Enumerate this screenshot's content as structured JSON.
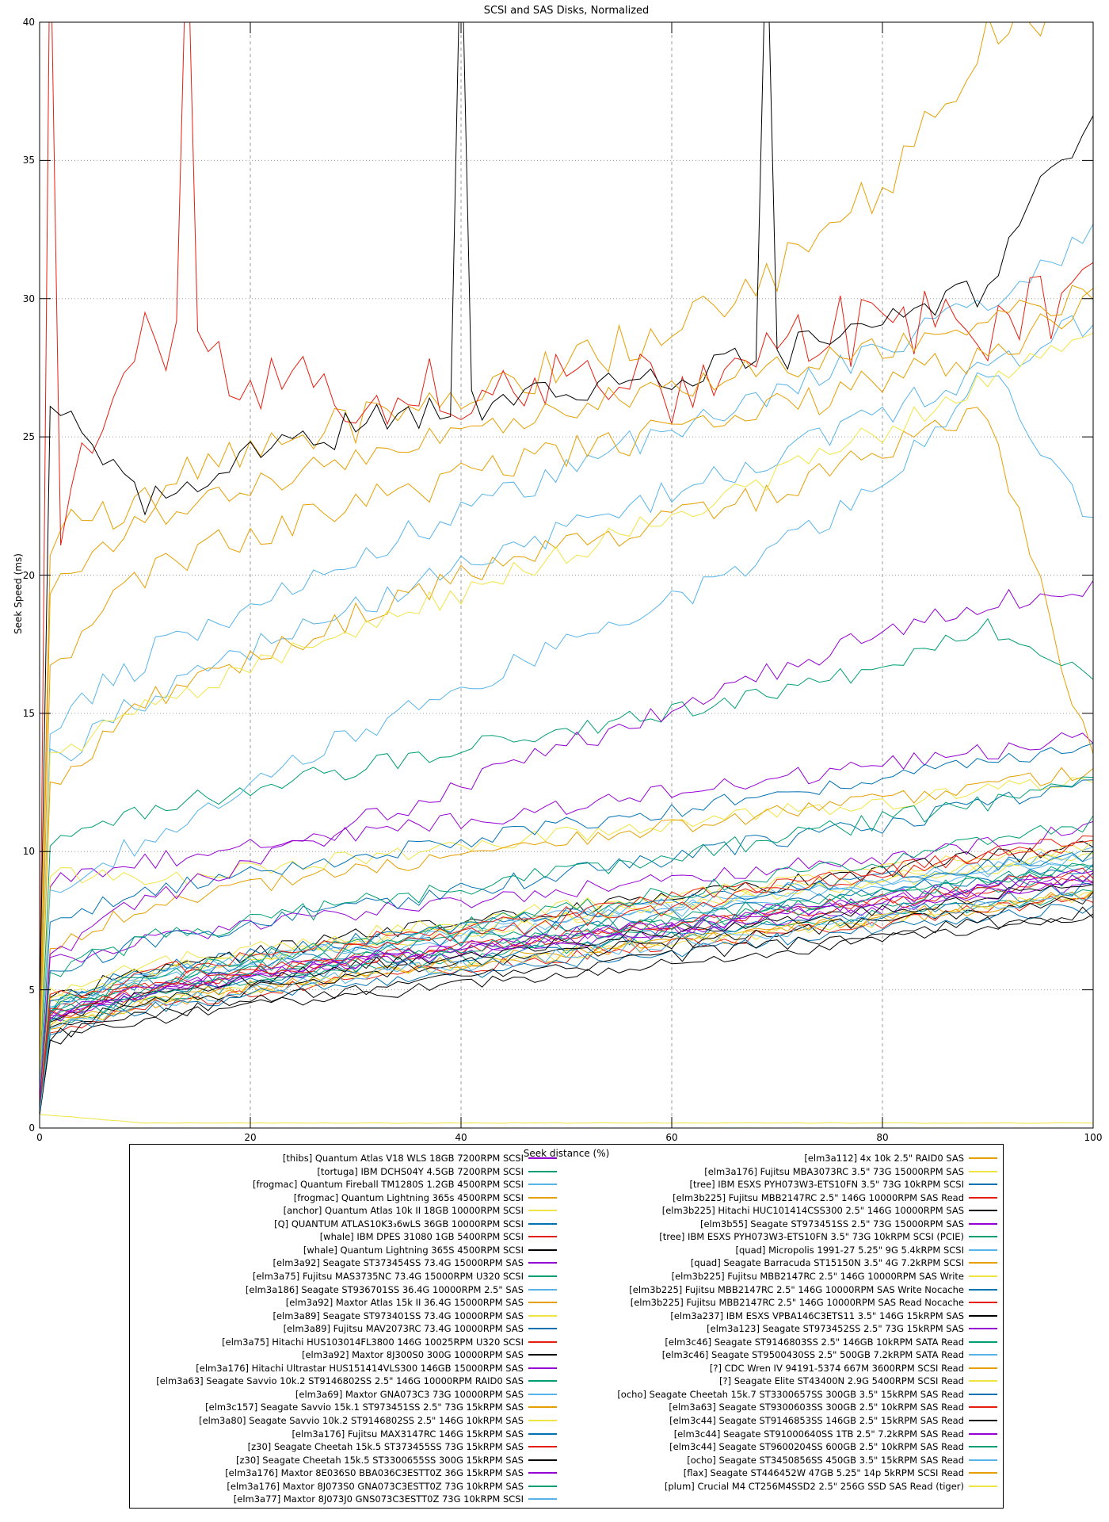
{
  "chart_data": {
    "type": "line",
    "title": "SCSI and SAS Disks, Normalized",
    "xlabel": "Seek distance (%)",
    "ylabel": "Seek Speed (ms)",
    "xlim": [
      0,
      100
    ],
    "ylim": [
      0,
      40
    ],
    "xticks": [
      0,
      20,
      40,
      60,
      80,
      100
    ],
    "yticks": [
      0,
      5,
      10,
      15,
      20,
      25,
      30,
      35,
      40
    ],
    "grid": "gray dashed vertical at 20/40/60/80, gray dotted horizontal at 5..35",
    "legend_position": "below plot, two columns, boxed",
    "palette": {
      "purple": "#9400d3",
      "green": "#009e73",
      "skyblue": "#56b4e9",
      "orange": "#e69f00",
      "yellow": "#f0e442",
      "blue": "#0072b2",
      "red": "#e51e10",
      "black": "#000000"
    },
    "x_anchor_step": 10,
    "series": [
      {
        "label": "[thibs] Quantum Atlas V18 WLS 18GB 7200RPM SCSI",
        "color": "purple",
        "column": "left",
        "y": [
          8.8,
          9.6,
          10.1,
          10.6,
          11.1,
          11.6,
          12.1,
          12.6,
          13.1,
          13.6,
          14.1
        ],
        "n": 0.35
      },
      {
        "label": "[tortuga] IBM DCHS04Y 4.5GB 7200RPM SCSI",
        "color": "green",
        "column": "left",
        "y": [
          10,
          11.5,
          12.3,
          13,
          13.7,
          14.4,
          15.1,
          15.8,
          16.6,
          18.2,
          16.1
        ],
        "n": 0.35
      },
      {
        "label": "[frogmac] Quantum Fireball TM1280S 1.2GB 4500RPM SCSI",
        "color": "skyblue",
        "column": "left",
        "y": [
          14.5,
          17,
          19,
          20.8,
          22.3,
          23.8,
          25.2,
          26.6,
          28,
          30,
          32.5
        ],
        "n": 0.6
      },
      {
        "label": "[frogmac] Quantum Lightning 365s 4500RPM SCSI",
        "color": "orange",
        "column": "left",
        "y": [
          21,
          23,
          24.5,
          25.5,
          26.5,
          27.5,
          29,
          31,
          34,
          39.5,
          40.8
        ],
        "n": 0.8
      },
      {
        "label": "[anchor] Quantum Atlas 10k II 18GB 10000RPM SCSI",
        "color": "yellow",
        "column": "left",
        "y": [
          9.3,
          8.9,
          9.4,
          9.8,
          10.2,
          10.6,
          11,
          11.4,
          11.8,
          12.2,
          12.7
        ],
        "n": 0.3
      },
      {
        "label": "[Q] QUANTUM ATLAS10K3₃6wLS 36GB 10000RPM SCSI",
        "color": "blue",
        "column": "left",
        "y": [
          7.5,
          8.5,
          9.2,
          9.8,
          10.4,
          11,
          11.5,
          12.1,
          12.7,
          13.3,
          13.9
        ],
        "n": 0.3
      },
      {
        "label": "[whale] IBM DPES 31080 1GB 5400RPM SCSI",
        "color": "red",
        "column": "left",
        "y": [
          20,
          28.5,
          27.5,
          26.5,
          27,
          27.5,
          26.8,
          28,
          29.3,
          28.8,
          30.3
        ],
        "n": 1.4,
        "spikes": [
          [
            1,
            44
          ],
          [
            14,
            44
          ]
        ]
      },
      {
        "label": "[whale] Quantum Lightning 365S 4500RPM SCSI",
        "color": "black",
        "column": "left",
        "y": [
          27,
          22.5,
          24.6,
          25.4,
          26,
          26.4,
          27.4,
          28,
          28.8,
          30.5,
          37
        ],
        "n": 0.7,
        "spikes": [
          [
            40,
            44
          ],
          [
            69,
            44
          ]
        ]
      },
      {
        "label": "[elm3a92] Seagate ST373454SS 73.4G 15000RPM SAS",
        "color": "purple",
        "column": "left",
        "y": [
          5.8,
          6.8,
          7.3,
          7.8,
          8.2,
          8.6,
          9,
          9.4,
          9.8,
          10.3,
          10.8
        ],
        "n": 0.3
      },
      {
        "label": "[elm3a75] Fujitsu MAS3735NC 73.4G 15000RPM U320 SCSI",
        "color": "green",
        "column": "left",
        "y": [
          3.7,
          4.7,
          5.2,
          5.7,
          6.1,
          6.5,
          6.9,
          7.3,
          7.7,
          8.1,
          8.5
        ],
        "n": 0.25
      },
      {
        "label": "[elm3a186] Seagate ST936701SS 36.4G 10000RPM 2.5\" SAS",
        "color": "skyblue",
        "column": "left",
        "y": [
          4.2,
          5.3,
          5.9,
          6.4,
          6.9,
          7.4,
          7.8,
          8.3,
          8.7,
          9.2,
          9.6
        ],
        "n": 0.25
      },
      {
        "label": "[elm3a92] Maxtor Atlas 15k II 36.4G 15000RPM SAS",
        "color": "orange",
        "column": "left",
        "y": [
          3.6,
          4.5,
          5,
          5.5,
          5.9,
          6.3,
          6.7,
          7.1,
          7.5,
          8,
          8.4
        ],
        "n": 0.25
      },
      {
        "label": "[elm3a89] Seagate ST973401SS 73.4G 10000RPM SAS",
        "color": "yellow",
        "column": "left",
        "y": [
          4.4,
          5.5,
          6.1,
          6.6,
          7.1,
          7.6,
          8,
          8.5,
          8.9,
          9.4,
          9.8
        ],
        "n": 0.25
      },
      {
        "label": "[elm3a89] Fujitsu MAV2073RC 73.4G 10000RPM SAS",
        "color": "blue",
        "column": "left",
        "y": [
          4.3,
          5.3,
          5.9,
          6.4,
          6.8,
          7.3,
          7.7,
          8.1,
          8.6,
          9,
          9.4
        ],
        "n": 0.25
      },
      {
        "label": "[elm3a75] Hitachi HUS103014FL3800 146G 10025RPM U320 SCSI",
        "color": "red",
        "column": "left",
        "y": [
          4.1,
          5.1,
          5.6,
          6.1,
          6.5,
          6.9,
          7.3,
          7.7,
          8.1,
          8.6,
          9
        ],
        "n": 0.25
      },
      {
        "label": "[elm3a92] Maxtor 8J300S0 300G 10000RPM SAS",
        "color": "black",
        "column": "left",
        "y": [
          4.6,
          5.7,
          6.3,
          6.9,
          7.4,
          7.9,
          8.3,
          8.8,
          9.3,
          9.8,
          10.2
        ],
        "n": 0.3
      },
      {
        "label": "[elm3a176] Hitachi Ultrastar HUS151414VLS300 146GB 15000RPM SAS",
        "color": "purple",
        "column": "left",
        "y": [
          3.9,
          4.9,
          5.4,
          5.9,
          6.3,
          6.7,
          7.1,
          7.5,
          7.9,
          8.4,
          8.8
        ],
        "n": 0.25
      },
      {
        "label": "[elm3a63] Seagate Savvio 10k.2 ST9146802SS 2.5\" 146G 10000RPM RAID0 SAS",
        "color": "green",
        "column": "left",
        "y": [
          4,
          5,
          5.6,
          6.1,
          6.5,
          7,
          7.4,
          7.8,
          8.2,
          8.7,
          9.1
        ],
        "n": 0.25
      },
      {
        "label": "[elm3a69] Maxtor GNA073C3 73G 10000RPM SAS",
        "color": "skyblue",
        "column": "left",
        "y": [
          4.5,
          5.6,
          6.2,
          6.7,
          7.2,
          7.7,
          8.1,
          8.6,
          9,
          9.5,
          10
        ],
        "n": 0.25
      },
      {
        "label": "[elm3c157] Seagate Savvio 15k.1 ST973451SS 2.5\" 73G 15kRPM SAS",
        "color": "orange",
        "column": "left",
        "y": [
          3.7,
          4.6,
          5.1,
          5.6,
          6,
          6.4,
          6.8,
          7.2,
          7.6,
          8.1,
          8.5
        ],
        "n": 0.25
      },
      {
        "label": "[elm3a80] Seagate Savvio 10k.2 ST9146802SS 2.5\" 146G 10kRPM SAS",
        "color": "yellow",
        "column": "left",
        "y": [
          4.5,
          5.6,
          6.2,
          6.7,
          7.2,
          7.7,
          8.1,
          8.6,
          9,
          9.5,
          9.9
        ],
        "n": 0.25
      },
      {
        "label": "[elm3a176] Fujitsu MAX3147RC 146G 15kRPM SAS",
        "color": "blue",
        "column": "left",
        "y": [
          3.8,
          4.8,
          5.3,
          5.8,
          6.2,
          6.6,
          7,
          7.4,
          7.8,
          8.3,
          8.7
        ],
        "n": 0.25
      },
      {
        "label": "[z30] Seagate Cheetah 15k.5 ST373455SS 73G 15kRPM SAS",
        "color": "red",
        "column": "left",
        "y": [
          3.5,
          4.4,
          4.9,
          5.4,
          5.8,
          6.2,
          6.6,
          7,
          7.4,
          7.9,
          8.3
        ],
        "n": 0.25
      },
      {
        "label": "[z30] Seagate Cheetah 15k.5 ST3300655SS 300G 15kRPM SAS",
        "color": "black",
        "column": "left",
        "y": [
          3,
          3.9,
          4.4,
          4.8,
          5.2,
          5.6,
          6,
          6.4,
          6.8,
          7.2,
          7.6
        ],
        "n": 0.25
      },
      {
        "label": "[elm3a176] Maxtor 8E036S0 BBA036C3ESTT0Z 36G 15kRPM SAS",
        "color": "purple",
        "column": "left",
        "y": [
          3.9,
          4.9,
          5.5,
          6,
          6.4,
          6.8,
          7.2,
          7.7,
          8.1,
          8.6,
          9
        ],
        "n": 0.25
      },
      {
        "label": "[elm3a176] Maxtor 8J073S0 GNA073C3ESTT0Z 73G 10kRPM SAS",
        "color": "green",
        "column": "left",
        "y": [
          4.2,
          5.2,
          5.8,
          6.3,
          6.8,
          7.2,
          7.6,
          8.1,
          8.5,
          9,
          9.4
        ],
        "n": 0.25
      },
      {
        "label": "[elm3a77] Maxtor 8J073J0 GNS073C3ESTT0Z 73G 10kRPM SCSI",
        "color": "skyblue",
        "column": "left",
        "y": [
          4.4,
          5.5,
          6.1,
          6.6,
          7.1,
          7.6,
          8,
          8.5,
          8.9,
          9.4,
          9.8
        ],
        "n": 0.25
      },
      {
        "label": "[elm3a112] 4x 10k 2.5\" RAID0 SAS",
        "color": "orange",
        "column": "right",
        "y": [
          6.5,
          8,
          8.7,
          9.3,
          9.9,
          10.4,
          10.9,
          11.4,
          11.9,
          12.4,
          12.9
        ],
        "n": 0.3
      },
      {
        "label": "[elm3a176] Fujitsu MBA3073RC 3.5\" 73G 15000RPM SAS",
        "color": "yellow",
        "column": "right",
        "y": [
          3.6,
          4.5,
          5,
          5.5,
          5.9,
          6.3,
          6.7,
          7.1,
          7.5,
          8,
          8.4
        ],
        "n": 0.25
      },
      {
        "label": "[tree] IBM ESXS PYH073W3-ETS10FN 3.5\" 73G 10kRPM SCSI",
        "color": "blue",
        "column": "right",
        "y": [
          5.5,
          6.7,
          7.4,
          8,
          8.6,
          9.2,
          9.8,
          10.4,
          11,
          11.7,
          12.4
        ],
        "n": 0.35
      },
      {
        "label": "[elm3b225] Fujitsu MBB2147RC 2.5\" 146G 10000RPM SAS Read",
        "color": "red",
        "column": "right",
        "y": [
          4,
          5,
          5.6,
          6.1,
          6.5,
          7,
          7.4,
          7.8,
          8.3,
          8.8,
          9.2
        ],
        "n": 0.25
      },
      {
        "label": "[elm3b225] Hitachi HUC101414CSS300 2.5\" 146G 10000RPM SAS",
        "color": "black",
        "column": "right",
        "y": [
          3.9,
          4.8,
          5.4,
          5.9,
          6.3,
          6.7,
          7.1,
          7.5,
          7.9,
          8.4,
          8.8
        ],
        "n": 0.25
      },
      {
        "label": "[elm3b55] Seagate ST973451SS 2.5\" 73G 15000RPM SAS",
        "color": "purple",
        "column": "right",
        "y": [
          4,
          5,
          5.5,
          6,
          6.5,
          6.9,
          7.3,
          7.7,
          8.2,
          8.7,
          9.1
        ],
        "n": 0.25
      },
      {
        "label": "[tree] IBM ESXS PYH073W3-ETS10FN 3.5\" 73G 10kRPM SCSI (PCIE)",
        "color": "green",
        "column": "right",
        "y": [
          5.5,
          6.8,
          7.5,
          8.1,
          8.7,
          9.3,
          9.9,
          10.5,
          11.1,
          11.8,
          12.6
        ],
        "n": 0.35
      },
      {
        "label": "[quad] Micropolis 1991-27 5.25\" 9G 5.4kRPM SCSI",
        "color": "skyblue",
        "column": "right",
        "y": [
          13,
          15.5,
          17.3,
          18.8,
          20.3,
          21.6,
          23,
          24.4,
          25.8,
          27.5,
          29.3
        ],
        "n": 0.5
      },
      {
        "label": "[quad] Seagate Barracuda ST15150N 3.5\" 4G 7.2kRPM SCSI",
        "color": "orange",
        "column": "right",
        "y": [
          12,
          15.5,
          17,
          18.5,
          20,
          21,
          22,
          23,
          24.5,
          26,
          13.2
        ],
        "n": 0.5
      },
      {
        "label": "[elm3b225] Fujitsu MBB2147RC 2.5\" 146G 10000RPM SAS Write",
        "color": "yellow",
        "column": "right",
        "y": [
          4.8,
          5.9,
          6.5,
          7,
          7.5,
          8,
          8.4,
          8.9,
          9.3,
          9.8,
          10.2
        ],
        "n": 0.25
      },
      {
        "label": "[elm3b225] Fujitsu MBB2147RC 2.5\" 146G 10000RPM SAS Write Nocache",
        "color": "blue",
        "column": "right",
        "y": [
          4.6,
          5.7,
          6.3,
          6.8,
          7.3,
          7.7,
          8.2,
          8.6,
          9,
          9.5,
          9.9
        ],
        "n": 0.25
      },
      {
        "label": "[elm3b225] Fujitsu MBB2147RC 2.5\" 146G 10000RPM SAS Read Nocache",
        "color": "red",
        "column": "right",
        "y": [
          4.5,
          5.6,
          6.2,
          6.8,
          7.3,
          7.8,
          8.3,
          8.8,
          9.3,
          9.9,
          10.5
        ],
        "n": 0.25
      },
      {
        "label": "[elm3a237] IBM ESXS VPBA146C3ETS11 3.5\" 146G 15kRPM SAS",
        "color": "black",
        "column": "right",
        "y": [
          3.6,
          4.5,
          5,
          5.5,
          5.9,
          6.3,
          6.7,
          7.1,
          7.5,
          7.9,
          8.3
        ],
        "n": 0.25
      },
      {
        "label": "[elm3a123] Seagate ST973452SS 2.5\" 73G 15kRPM SAS",
        "color": "purple",
        "column": "right",
        "y": [
          4,
          5,
          5.6,
          6.1,
          6.6,
          7,
          7.4,
          7.9,
          8.3,
          8.8,
          9.3
        ],
        "n": 0.25
      },
      {
        "label": "[elm3c46] Seagate ST9146803SS 2.5\" 146GB 10kRPM SATA Read",
        "color": "green",
        "column": "right",
        "y": [
          4.2,
          5.4,
          6.1,
          6.7,
          7.3,
          7.9,
          8.5,
          9.1,
          9.7,
          10.4,
          11
        ],
        "n": 0.3
      },
      {
        "label": "[elm3c46] Seagate ST9500430SS 2.5\" 500GB 7.2kRPM SATA Read",
        "color": "skyblue",
        "column": "right",
        "y": [
          8,
          10.5,
          12.5,
          14.3,
          16,
          17.5,
          19,
          21,
          23.2,
          27.5,
          21.8
        ],
        "n": 0.45
      },
      {
        "label": "[?] CDC Wren IV 94191-5374 667M 3600RPM SCSI Read",
        "color": "orange",
        "column": "right",
        "y": [
          19,
          22,
          23.2,
          24.2,
          25.2,
          26,
          26.8,
          27.5,
          28.2,
          29.2,
          30.2
        ],
        "n": 0.5
      },
      {
        "label": "[?] Seagate Elite ST43400N 2.9G 5400RPM SCSI Read",
        "color": "yellow",
        "column": "right",
        "y": [
          13,
          15.2,
          16.6,
          18,
          19.4,
          20.8,
          22.2,
          23.6,
          25.2,
          27,
          28.8
        ],
        "n": 0.45
      },
      {
        "label": "[ocho] Seagate Cheetah 15k.7 ST3300657SS 300GB 3.5\" 15kRPM SAS Read",
        "color": "blue",
        "column": "right",
        "y": [
          3.5,
          4.3,
          4.8,
          5.2,
          5.6,
          6,
          6.4,
          6.8,
          7.2,
          7.6,
          8
        ],
        "n": 0.25
      },
      {
        "label": "[elm3a63] Seagate ST9300603SS 300GB 2.5\" 10kRPM SAS Read",
        "color": "red",
        "column": "right",
        "y": [
          4,
          5.1,
          5.8,
          6.4,
          7,
          7.5,
          8,
          8.6,
          9.2,
          9.8,
          10.4
        ],
        "n": 0.3
      },
      {
        "label": "[elm3c44] Seagate ST9146853SS 146GB 2.5\" 15kRPM SAS Read",
        "color": "black",
        "column": "right",
        "y": [
          3.3,
          4.1,
          4.6,
          5,
          5.4,
          5.8,
          6.2,
          6.6,
          7,
          7.4,
          7.8
        ],
        "n": 0.25
      },
      {
        "label": "[elm3c44] Seagate ST91000640SS 1TB 2.5\" 7.2kRPM SAS Read",
        "color": "purple",
        "column": "right",
        "y": [
          6,
          8.2,
          9.6,
          11,
          12.4,
          13.8,
          15.2,
          16.6,
          17.9,
          19,
          19.6
        ],
        "n": 0.4
      },
      {
        "label": "[elm3c44] Seagate ST9600204SS 600GB 2.5\" 10kRPM SAS Read",
        "color": "green",
        "column": "right",
        "y": [
          3.8,
          4.8,
          5.4,
          5.9,
          6.4,
          6.9,
          7.4,
          7.9,
          8.4,
          9,
          9.5
        ],
        "n": 0.25
      },
      {
        "label": "[ocho] Seagate ST3450856SS 450GB 3.5\" 15kRPM SAS Read",
        "color": "skyblue",
        "column": "right",
        "y": [
          3.5,
          4.4,
          5,
          5.5,
          5.9,
          6.3,
          6.7,
          7.1,
          7.6,
          8.1,
          8.5
        ],
        "n": 0.25
      },
      {
        "label": "[flax] Seagate ST446452W 47GB 5.25\" 14p 5kRPM SCSI Read",
        "color": "orange",
        "column": "right",
        "y": [
          16.5,
          20,
          21.5,
          22.5,
          23.5,
          24.4,
          25.2,
          26,
          27,
          28,
          30
        ],
        "n": 0.6
      },
      {
        "label": "[plum] Crucial M4 CT256M4SSD2 2.5\" 256G SSD SAS Read (tiger)",
        "color": "yellow",
        "column": "right",
        "y": [
          0.5,
          0.18,
          0.18,
          0.18,
          0.18,
          0.18,
          0.18,
          0.18,
          0.18,
          0.18,
          0.18
        ],
        "n": 0.01,
        "nodip": true
      }
    ]
  }
}
